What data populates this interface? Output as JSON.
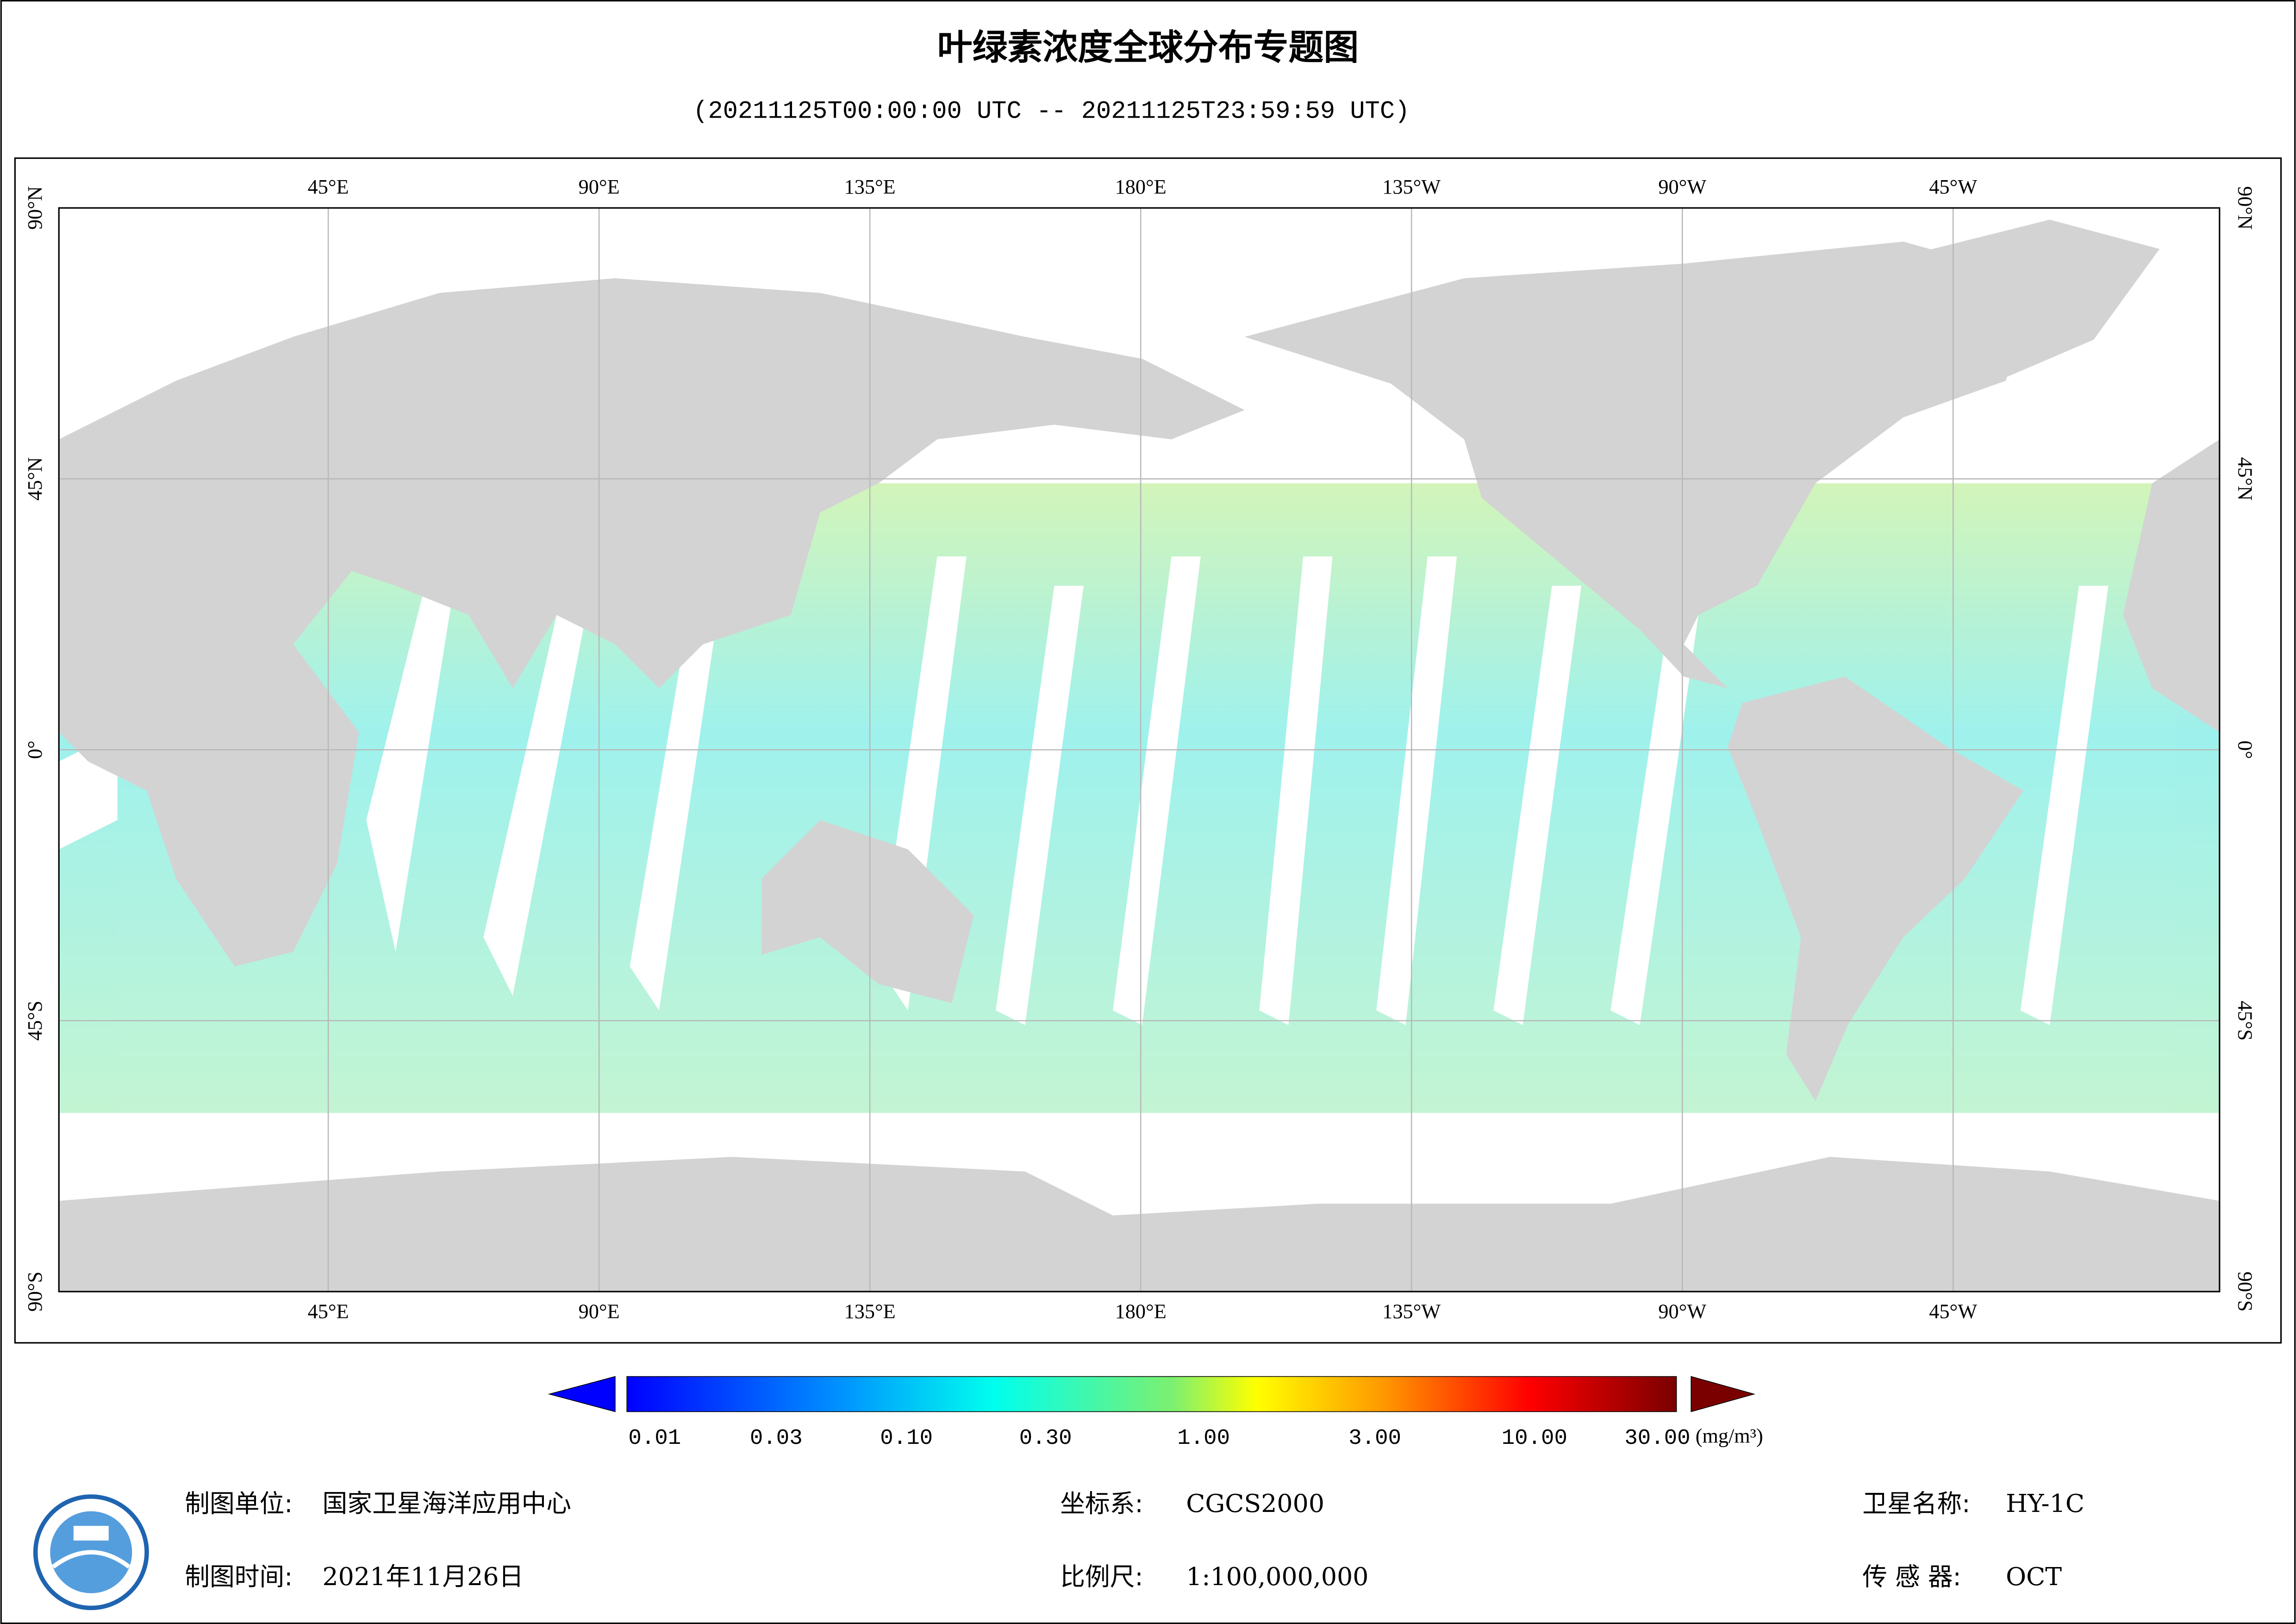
{
  "header": {
    "title": "叶绿素浓度全球分布专题图",
    "subtitle": "(20211125T00:00:00 UTC -- 20211125T23:59:59 UTC)"
  },
  "map": {
    "lon_labels": [
      "45°E",
      "90°E",
      "135°E",
      "180°E",
      "135°W",
      "90°W",
      "45°W"
    ],
    "lat_labels": [
      "90°N",
      "45°N",
      "0°",
      "45°S",
      "90°S"
    ]
  },
  "colorbar": {
    "ticks": [
      "0.01",
      "0.03",
      "0.10",
      "0.30",
      "1.00",
      "3.00",
      "10.00",
      "30.00"
    ],
    "unit": "(mg/m³)"
  },
  "footer": {
    "items": [
      {
        "label": "制图单位:",
        "value": "国家卫星海洋应用中心"
      },
      {
        "label": "制图时间:",
        "value": "2021年11月26日"
      },
      {
        "label": "坐标系:",
        "value": "CGCS2000"
      },
      {
        "label": "比例尺:",
        "value": "1:100,000,000"
      },
      {
        "label": "卫星名称:",
        "value": "HY-1C"
      },
      {
        "label": "传 感 器:",
        "value": "OCT"
      }
    ]
  }
}
